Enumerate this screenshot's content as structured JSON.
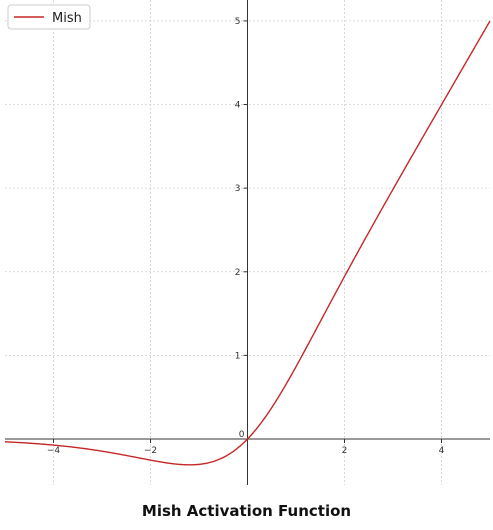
{
  "chart_data": {
    "type": "line",
    "title": "",
    "xlabel": "",
    "ylabel": "",
    "xlim": [
      -5,
      5
    ],
    "ylim": [
      -0.55,
      5.25
    ],
    "grid": true,
    "legend_position": "top-left",
    "x_ticks": [
      -4,
      -2,
      0,
      2,
      4
    ],
    "x_tick_labels": [
      "−4",
      "−2",
      "0",
      "2",
      "4"
    ],
    "y_ticks": [
      0,
      1,
      2,
      3,
      4,
      5
    ],
    "y_tick_labels": [
      "0",
      "1",
      "2",
      "3",
      "4",
      "5"
    ],
    "series": [
      {
        "name": "Mish",
        "color": "#c62828",
        "x": [
          -5,
          -4.5,
          -4,
          -3.5,
          -3,
          -2.5,
          -2,
          -1.5,
          -1.25,
          -1,
          -0.75,
          -0.5,
          -0.25,
          0,
          0.25,
          0.5,
          0.75,
          1,
          1.5,
          2,
          2.5,
          3,
          3.5,
          4,
          4.5,
          5
        ],
        "y": [
          -0.034,
          -0.049,
          -0.073,
          -0.106,
          -0.146,
          -0.194,
          -0.252,
          -0.298,
          -0.306,
          -0.303,
          -0.283,
          -0.236,
          -0.153,
          0,
          0.191,
          0.375,
          0.558,
          0.865,
          1.4,
          1.944,
          2.474,
          2.987,
          3.494,
          4.0,
          4.5,
          5.0
        ]
      }
    ]
  },
  "caption": "Mish Activation Function"
}
